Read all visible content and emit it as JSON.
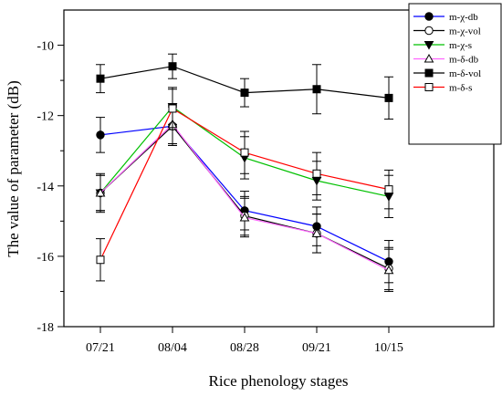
{
  "chart_data": {
    "type": "line",
    "xlabel": "Rice phenology stages",
    "ylabel": "The value of parameter (dB)",
    "categories": [
      "07/21",
      "08/04",
      "08/28",
      "09/21",
      "10/15"
    ],
    "ylim": [
      -18,
      -9
    ],
    "yticks": [
      -18,
      -16,
      -14,
      -12,
      -10
    ],
    "grid": false,
    "legend_position": "top-right",
    "series": [
      {
        "name": "m-χ-db",
        "color": "#0000ff",
        "marker": "circle-filled",
        "values": [
          -12.55,
          -12.3,
          -14.7,
          -15.15,
          -16.15
        ],
        "errors": [
          0.5,
          0.55,
          0.55,
          0.55,
          0.6
        ]
      },
      {
        "name": "m-χ-vol",
        "color": "#000000",
        "marker": "circle-open",
        "values": [
          -14.2,
          -12.3,
          -14.85,
          -15.35,
          -16.35
        ],
        "errors": [
          0.5,
          0.55,
          0.55,
          0.55,
          0.6
        ]
      },
      {
        "name": "m-χ-s",
        "color": "#00c000",
        "marker": "triangle-down-filled",
        "values": [
          -14.2,
          -11.75,
          -13.2,
          -13.85,
          -14.3
        ],
        "errors": [
          0.55,
          0.5,
          0.6,
          0.55,
          0.6
        ]
      },
      {
        "name": "m-δ-db",
        "color": "#ff66ff",
        "marker": "triangle-up-open",
        "values": [
          -14.2,
          -12.25,
          -14.9,
          -15.35,
          -16.4
        ],
        "errors": [
          0.5,
          0.55,
          0.55,
          0.55,
          0.6
        ]
      },
      {
        "name": "m-δ-vol",
        "color": "#000000",
        "marker": "square-filled",
        "values": [
          -10.95,
          -10.6,
          -11.35,
          -11.25,
          -11.5
        ],
        "errors": [
          0.4,
          0.35,
          0.4,
          0.7,
          0.6
        ]
      },
      {
        "name": "m-δ-s",
        "color": "#ff0000",
        "marker": "square-open",
        "values": [
          -16.1,
          -11.8,
          -13.05,
          -13.65,
          -14.1
        ],
        "errors": [
          0.6,
          0.6,
          0.6,
          0.6,
          0.55
        ]
      }
    ]
  }
}
